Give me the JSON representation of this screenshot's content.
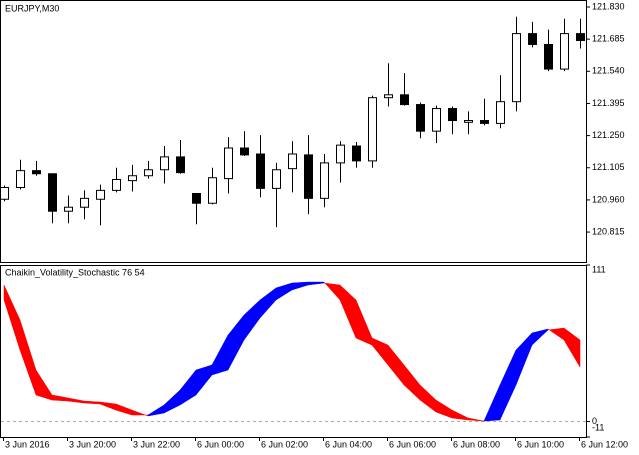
{
  "chart_data": [
    {
      "type": "candlestick",
      "title": "EURJPY,M30",
      "open": [
        120.963,
        121.016,
        121.092,
        121.078,
        120.909,
        120.927,
        120.963,
        121.003,
        121.047,
        121.069,
        121.096,
        121.154,
        120.989,
        120.945,
        121.056,
        121.194,
        121.167,
        121.012,
        121.101,
        121.163,
        120.967,
        121.127,
        121.203,
        121.136,
        121.421,
        121.434,
        121.39,
        121.27,
        121.372,
        121.31,
        121.318,
        121.305,
        121.403,
        121.71,
        121.661,
        121.55,
        121.71
      ],
      "high": [
        121.025,
        121.141,
        121.136,
        121.078,
        120.98,
        121.003,
        121.029,
        121.105,
        121.118,
        121.136,
        121.203,
        121.23,
        120.989,
        121.105,
        121.243,
        121.27,
        121.252,
        121.127,
        121.225,
        121.252,
        121.167,
        121.225,
        121.221,
        121.43,
        121.576,
        121.532,
        121.399,
        121.385,
        121.381,
        121.359,
        121.416,
        121.523,
        121.786,
        121.763,
        121.728,
        121.777,
        121.777
      ],
      "low": [
        120.954,
        121.007,
        121.069,
        120.855,
        120.855,
        120.873,
        120.846,
        120.994,
        120.998,
        121.056,
        121.034,
        121.078,
        120.85,
        120.94,
        120.989,
        121.158,
        120.972,
        120.837,
        120.994,
        120.896,
        120.927,
        121.038,
        121.105,
        121.105,
        121.381,
        121.385,
        121.238,
        121.216,
        121.256,
        121.256,
        121.296,
        121.283,
        121.359,
        121.648,
        121.541,
        121.541,
        121.643
      ],
      "close": [
        121.016,
        121.092,
        121.078,
        120.909,
        120.927,
        120.967,
        121.003,
        121.052,
        121.069,
        121.096,
        121.154,
        121.083,
        120.945,
        121.06,
        121.194,
        121.163,
        121.012,
        121.096,
        121.167,
        120.967,
        121.127,
        121.207,
        121.136,
        121.421,
        121.434,
        121.39,
        121.27,
        121.372,
        121.318,
        121.318,
        121.305,
        121.403,
        121.71,
        121.661,
        121.55,
        121.71,
        121.679
      ],
      "up_color": "#ffffff",
      "down_color": "#000000",
      "color": "#000000",
      "ylim": [
        120.68,
        121.857
      ],
      "yticks": [
        {
          "value": 121.83,
          "label": "121.830"
        },
        121.685,
        {
          "value": 121.54,
          "label": "121.540"
        },
        121.395,
        {
          "value": 121.25,
          "label": "121.250"
        },
        121.105,
        {
          "value": 120.96,
          "label": "120.960"
        },
        120.815
      ]
    },
    {
      "type": "band",
      "title": "Chaikin_Volatility_Stochastic 76 54",
      "categories": [
        "3 Jun 2016",
        null,
        null,
        null,
        "3 Jun 20:00",
        null,
        null,
        null,
        "3 Jun 22:00",
        null,
        null,
        null,
        "6 Jun 00:00",
        null,
        null,
        null,
        "6 Jun 02:00",
        null,
        null,
        null,
        "6 Jun 04:00",
        null,
        null,
        null,
        "6 Jun 06:00",
        null,
        null,
        null,
        "6 Jun 08:00",
        null,
        null,
        null,
        "6 Jun 10:00",
        null,
        null,
        null,
        "6 Jun 12:00"
      ],
      "series": [
        {
          "values": [
            86.2,
            50.7,
            18.8,
            15.2,
            14.5,
            13.1,
            12.4,
            8.1,
            4.6,
            4.6,
            11.7,
            22.3,
            36.5,
            40.1,
            61.3,
            75.5,
            86.2,
            94.7,
            98.2,
            98.9,
            98.9,
            86.2,
            59.2,
            54.2,
            40.1,
            25.9,
            15.2,
            6.7,
            2.5,
            1.1,
            0.3,
            25.9,
            50.7,
            62.8,
            65.6,
            57.8,
            38.6
          ]
        },
        {
          "values": [
            96.8,
            72.0,
            36.5,
            18.8,
            16.7,
            14.5,
            13.8,
            12.4,
            8.1,
            3.9,
            6.0,
            11.7,
            18.8,
            33.0,
            36.5,
            57.8,
            73.4,
            86.2,
            93.3,
            96.8,
            98.2,
            96.8,
            86.2,
            59.2,
            54.2,
            40.1,
            25.9,
            15.2,
            8.1,
            2.5,
            0.3,
            1.1,
            25.9,
            54.2,
            64.9,
            66.3,
            57.8
          ]
        }
      ],
      "up_color": "#0000ff",
      "down_color": "#ff0000",
      "ylim": [
        -11,
        111
      ],
      "yticks": [
        111,
        0,
        -11
      ],
      "levels": [
        0
      ]
    }
  ]
}
